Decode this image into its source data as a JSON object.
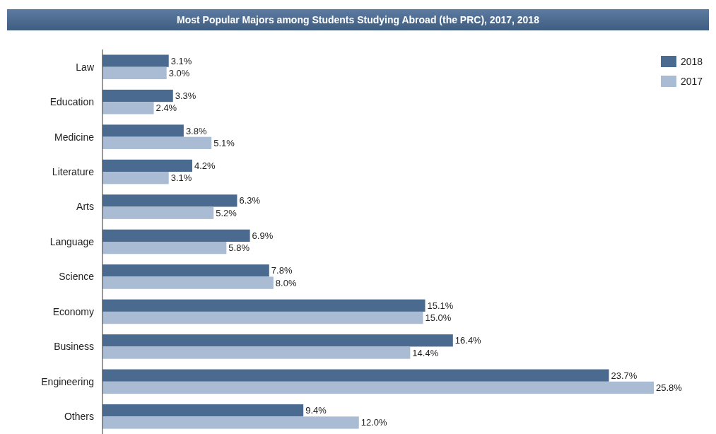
{
  "chart_data": {
    "type": "bar",
    "orientation": "horizontal",
    "title": "Most Popular Majors among Students Studying Abroad (the PRC), 2017, 2018",
    "categories": [
      "Law",
      "Education",
      "Medicine",
      "Literature",
      "Arts",
      "Language",
      "Science",
      "Economy",
      "Business",
      "Engineering",
      "Others"
    ],
    "series": [
      {
        "name": "2018",
        "color": "#4a6a8f",
        "values": [
          3.1,
          3.3,
          3.8,
          4.2,
          6.3,
          6.9,
          7.8,
          15.1,
          16.4,
          23.7,
          9.4
        ],
        "value_labels": [
          "3.1%",
          "3.3%",
          "3.8%",
          "4.2%",
          "6.3%",
          "6.9%",
          "7.8%",
          "15.1%",
          "16.4%",
          "23.7%",
          "9.4%"
        ]
      },
      {
        "name": "2017",
        "color": "#a9bcd3",
        "values": [
          3.0,
          2.4,
          5.1,
          3.1,
          5.2,
          5.8,
          8.0,
          15.0,
          14.4,
          25.8,
          12.0
        ],
        "value_labels": [
          "3.0%",
          "2.4%",
          "5.1%",
          "3.1%",
          "5.2%",
          "5.8%",
          "8.0%",
          "15.0%",
          "14.4%",
          "25.8%",
          "12.0%"
        ]
      }
    ],
    "legend": "top right"
  }
}
